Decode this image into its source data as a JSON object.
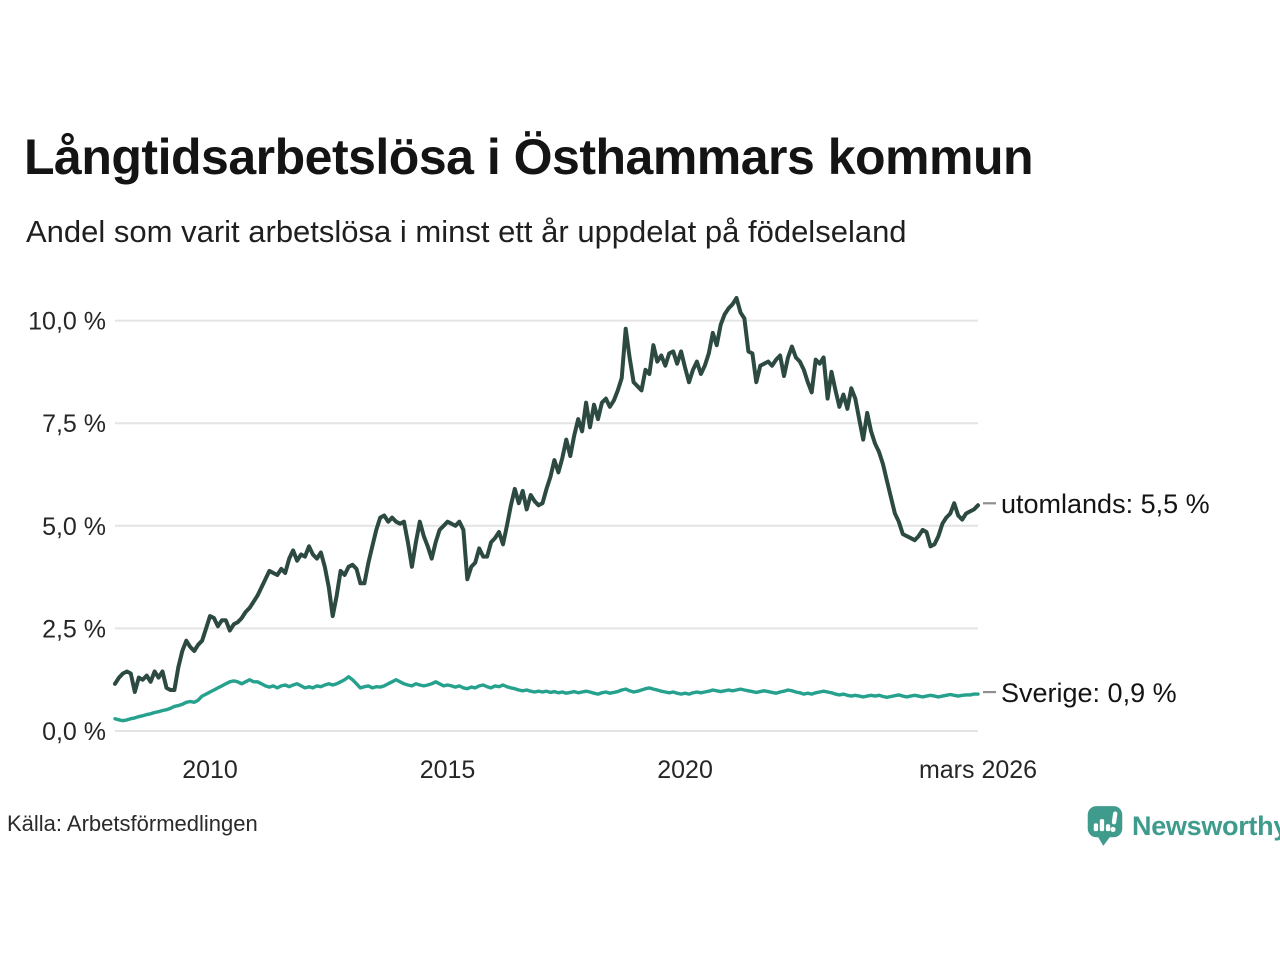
{
  "header": {
    "title": "Långtidsarbetslösa i Östhammars kommun",
    "subtitle": "Andel som varit arbetslösa i minst ett år uppdelat på födelseland"
  },
  "source": {
    "label": "Källa: Arbetsförmedlingen"
  },
  "branding": {
    "name": "Newsworthy",
    "color": "#3f9b8c"
  },
  "chart_data": {
    "type": "line",
    "title": "Långtidsarbetslösa i Östhammars kommun",
    "subtitle": "Andel som varit arbetslösa i minst ett år uppdelat på födelseland",
    "unit": "%",
    "x_start": "2008-01",
    "x_end": "2026-03",
    "x_frequency": "monthly",
    "ylim": [
      0,
      10.5
    ],
    "grid": "horizontal",
    "legend_position": "end-of-line-labels",
    "y_ticks": [
      {
        "label": "10,0 %",
        "value": 10.0
      },
      {
        "label": "7,5 %",
        "value": 7.5
      },
      {
        "label": "5,0 %",
        "value": 5.0
      },
      {
        "label": "2,5 %",
        "value": 2.5
      },
      {
        "label": "0,0 %",
        "value": 0.0
      }
    ],
    "x_ticks": [
      {
        "label": "2010",
        "month_index": 24
      },
      {
        "label": "2015",
        "month_index": 84
      },
      {
        "label": "2020",
        "month_index": 144
      },
      {
        "label": "mars 2026",
        "month_index": 218
      }
    ],
    "series": [
      {
        "name": "utomlands",
        "color": "#2c4a42",
        "end_label": "utomlands: 5,5 %",
        "end_value": 5.5,
        "values": [
          1.15,
          1.3,
          1.4,
          1.45,
          1.4,
          0.95,
          1.3,
          1.25,
          1.35,
          1.2,
          1.45,
          1.3,
          1.45,
          1.05,
          1.0,
          1.0,
          1.55,
          1.95,
          2.2,
          2.05,
          1.95,
          2.1,
          2.2,
          2.5,
          2.8,
          2.75,
          2.55,
          2.7,
          2.7,
          2.45,
          2.6,
          2.65,
          2.75,
          2.9,
          3.0,
          3.15,
          3.3,
          3.5,
          3.7,
          3.9,
          3.85,
          3.8,
          3.95,
          3.85,
          4.2,
          4.4,
          4.15,
          4.3,
          4.25,
          4.5,
          4.3,
          4.2,
          4.35,
          4.0,
          3.5,
          2.8,
          3.3,
          3.9,
          3.8,
          4.0,
          4.05,
          3.95,
          3.6,
          3.6,
          4.1,
          4.5,
          4.9,
          5.2,
          5.25,
          5.1,
          5.2,
          5.1,
          5.05,
          5.1,
          4.6,
          4.0,
          4.6,
          5.1,
          4.75,
          4.5,
          4.2,
          4.6,
          4.9,
          5.0,
          5.1,
          5.05,
          5.0,
          5.1,
          4.9,
          3.7,
          4.0,
          4.1,
          4.45,
          4.25,
          4.25,
          4.6,
          4.7,
          4.85,
          4.55,
          5.0,
          5.5,
          5.9,
          5.55,
          5.85,
          5.4,
          5.75,
          5.6,
          5.5,
          5.55,
          5.9,
          6.2,
          6.6,
          6.3,
          6.65,
          7.1,
          6.7,
          7.2,
          7.6,
          7.3,
          8.0,
          7.4,
          7.95,
          7.6,
          8.0,
          8.1,
          7.9,
          8.05,
          8.3,
          8.6,
          9.8,
          9.1,
          8.5,
          8.4,
          8.3,
          8.8,
          8.7,
          9.4,
          9.0,
          9.15,
          8.9,
          9.2,
          9.25,
          8.95,
          9.25,
          8.85,
          8.5,
          8.8,
          9.0,
          8.7,
          8.9,
          9.2,
          9.7,
          9.4,
          9.9,
          10.15,
          10.3,
          10.4,
          10.55,
          10.2,
          10.05,
          9.25,
          9.2,
          8.5,
          8.9,
          8.95,
          9.0,
          8.9,
          9.05,
          9.15,
          8.65,
          9.1,
          9.37,
          9.1,
          9.0,
          8.8,
          8.5,
          8.25,
          9.05,
          8.95,
          9.1,
          8.1,
          8.75,
          8.3,
          7.9,
          8.2,
          7.85,
          8.35,
          8.1,
          7.6,
          7.1,
          7.75,
          7.3,
          7.0,
          6.8,
          6.5,
          6.1,
          5.7,
          5.3,
          5.1,
          4.8,
          4.75,
          4.7,
          4.65,
          4.75,
          4.9,
          4.85,
          4.5,
          4.55,
          4.75,
          5.05,
          5.2,
          5.3,
          5.55,
          5.25,
          5.15,
          5.3,
          5.35,
          5.4,
          5.5
        ]
      },
      {
        "name": "Sverige",
        "color": "#25a18e",
        "end_label": "Sverige: 0,9 %",
        "end_value": 0.9,
        "values": [
          0.3,
          0.27,
          0.25,
          0.27,
          0.3,
          0.32,
          0.35,
          0.37,
          0.4,
          0.42,
          0.45,
          0.47,
          0.5,
          0.52,
          0.55,
          0.6,
          0.62,
          0.65,
          0.7,
          0.72,
          0.7,
          0.75,
          0.85,
          0.9,
          0.95,
          1.0,
          1.05,
          1.1,
          1.15,
          1.2,
          1.22,
          1.2,
          1.15,
          1.2,
          1.25,
          1.2,
          1.2,
          1.15,
          1.1,
          1.07,
          1.1,
          1.05,
          1.1,
          1.12,
          1.08,
          1.12,
          1.15,
          1.1,
          1.05,
          1.08,
          1.05,
          1.1,
          1.08,
          1.12,
          1.15,
          1.12,
          1.15,
          1.2,
          1.25,
          1.32,
          1.25,
          1.15,
          1.05,
          1.08,
          1.1,
          1.05,
          1.08,
          1.07,
          1.1,
          1.15,
          1.2,
          1.25,
          1.2,
          1.15,
          1.12,
          1.1,
          1.15,
          1.12,
          1.1,
          1.12,
          1.15,
          1.2,
          1.15,
          1.1,
          1.12,
          1.1,
          1.07,
          1.1,
          1.05,
          1.03,
          1.07,
          1.05,
          1.1,
          1.12,
          1.08,
          1.05,
          1.1,
          1.08,
          1.12,
          1.08,
          1.05,
          1.03,
          1.0,
          0.98,
          1.0,
          0.97,
          0.95,
          0.97,
          0.95,
          0.97,
          0.94,
          0.96,
          0.93,
          0.95,
          0.92,
          0.94,
          0.96,
          0.93,
          0.95,
          0.97,
          0.95,
          0.92,
          0.9,
          0.93,
          0.95,
          0.92,
          0.94,
          0.96,
          1.0,
          1.02,
          0.98,
          0.95,
          0.97,
          1.0,
          1.03,
          1.05,
          1.02,
          1.0,
          0.97,
          0.95,
          0.93,
          0.95,
          0.92,
          0.9,
          0.92,
          0.9,
          0.93,
          0.95,
          0.93,
          0.95,
          0.97,
          1.0,
          0.98,
          0.96,
          0.98,
          1.0,
          0.98,
          1.0,
          1.02,
          1.0,
          0.98,
          0.96,
          0.94,
          0.96,
          0.98,
          0.96,
          0.94,
          0.92,
          0.95,
          0.97,
          1.0,
          0.98,
          0.95,
          0.93,
          0.9,
          0.92,
          0.9,
          0.93,
          0.95,
          0.97,
          0.95,
          0.93,
          0.9,
          0.88,
          0.9,
          0.87,
          0.85,
          0.87,
          0.85,
          0.83,
          0.85,
          0.87,
          0.85,
          0.87,
          0.84,
          0.82,
          0.84,
          0.86,
          0.88,
          0.85,
          0.83,
          0.85,
          0.87,
          0.85,
          0.83,
          0.85,
          0.87,
          0.85,
          0.83,
          0.85,
          0.87,
          0.89,
          0.87,
          0.85,
          0.87,
          0.88,
          0.88,
          0.9,
          0.9
        ]
      }
    ]
  }
}
